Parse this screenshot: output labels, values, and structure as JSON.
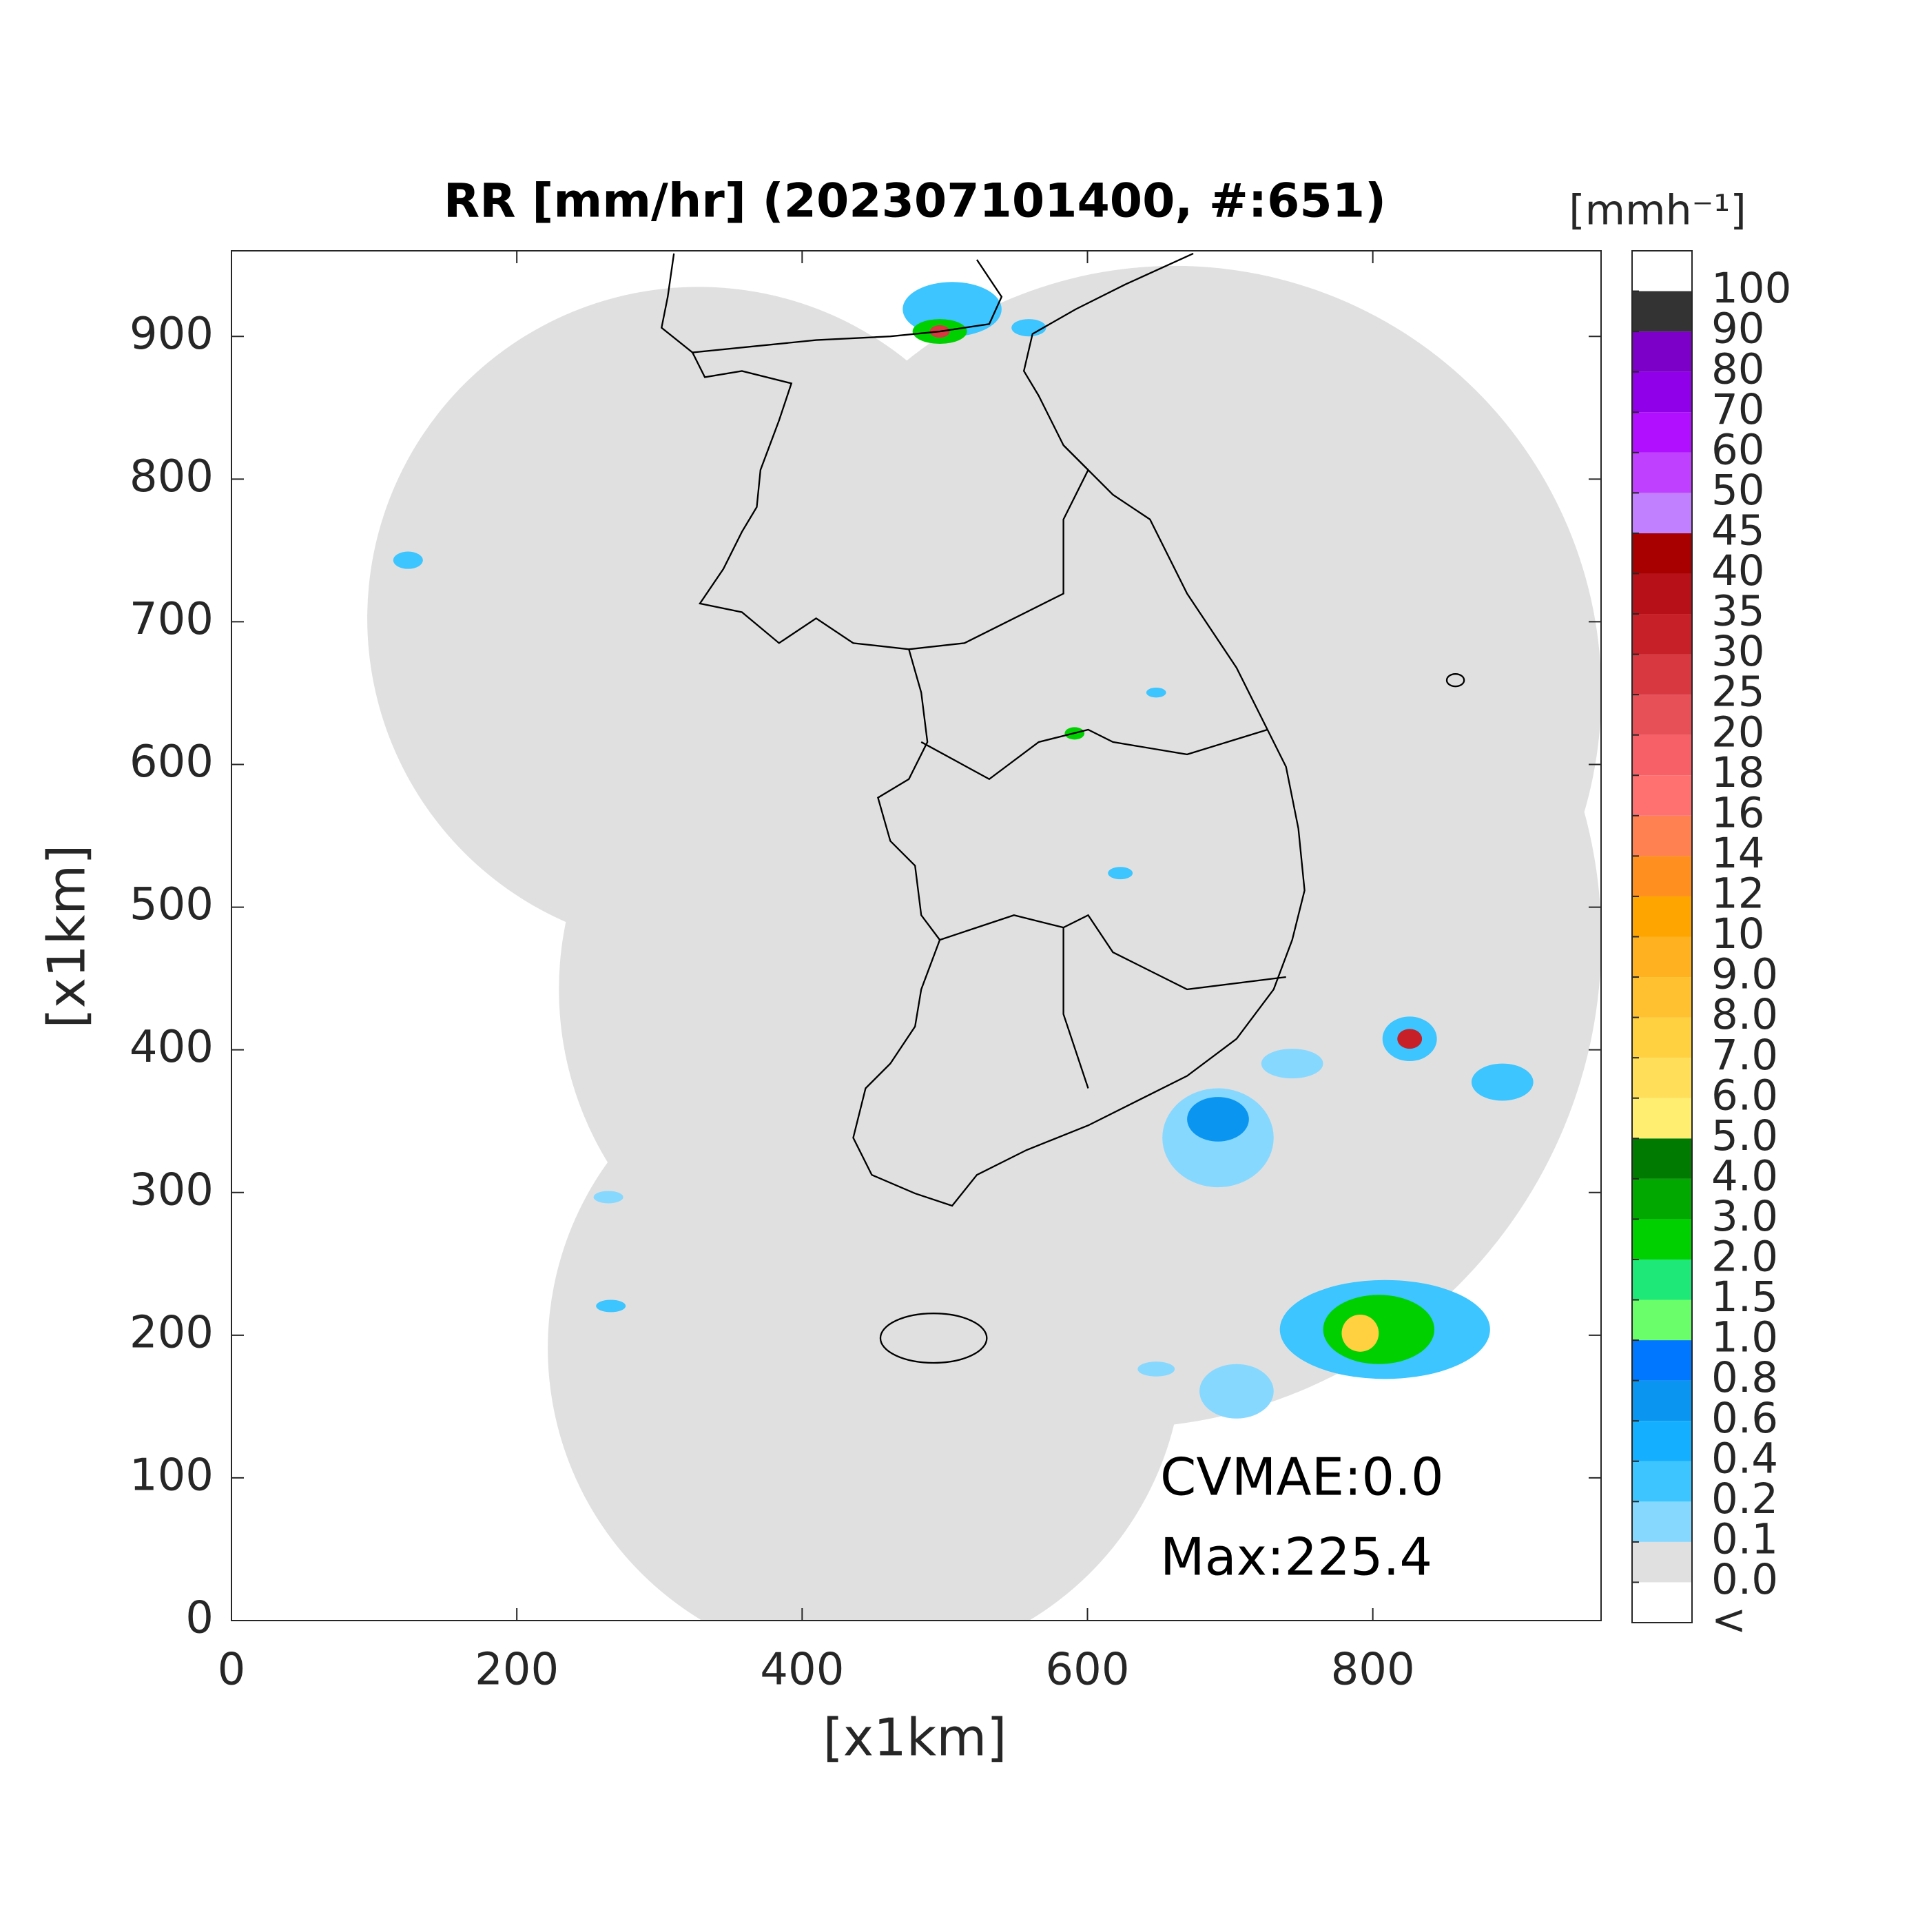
{
  "chart_data": {
    "type": "map",
    "title": "RR [mm/hr] (202307101400, #:651)",
    "x_label": "[x1km]",
    "y_label": "[x1km]",
    "xlim": [
      0,
      960
    ],
    "ylim": [
      0,
      960
    ],
    "xticks": [
      0,
      200,
      400,
      600,
      800
    ],
    "yticks": [
      0,
      100,
      200,
      300,
      400,
      500,
      600,
      700,
      800,
      900
    ],
    "annotations": [
      "CVMAE:0.0",
      "Max:225.4"
    ],
    "colorbar": {
      "unit_label": "[mmh⁻¹]",
      "below_label": "<",
      "levels": [
        {
          "value": 0,
          "label": "0.0"
        },
        0.1,
        0.2,
        0.4,
        0.6,
        0.8,
        {
          "value": 1,
          "label": "1.0"
        },
        1.5,
        {
          "value": 2,
          "label": "2.0"
        },
        {
          "value": 3,
          "label": "3.0"
        },
        {
          "value": 4,
          "label": "4.0"
        },
        {
          "value": 5,
          "label": "5.0"
        },
        {
          "value": 6,
          "label": "6.0"
        },
        {
          "value": 7,
          "label": "7.0"
        },
        {
          "value": 8,
          "label": "8.0"
        },
        {
          "value": 9,
          "label": "9.0"
        },
        10,
        12,
        14,
        16,
        18,
        20,
        25,
        30,
        35,
        40,
        45,
        50,
        60,
        70,
        80,
        90,
        100
      ],
      "colors": [
        "#ffffff",
        "#e0e0e0",
        "#87d8ff",
        "#3cc5ff",
        "#14b0ff",
        "#0a96f0",
        "#0077ff",
        "#6aff6a",
        "#1ee878",
        "#00d000",
        "#00a800",
        "#007a00",
        "#ffee70",
        "#ffdf5a",
        "#ffd040",
        "#ffc130",
        "#ffb120",
        "#ffa500",
        "#ff9020",
        "#ff8050",
        "#ff7070",
        "#f86068",
        "#e85058",
        "#d83840",
        "#c82028",
        "#b81018",
        "#a80000",
        "#c080ff",
        "#c040ff",
        "#b010ff",
        "#9000e8",
        "#7d00c8",
        "#333333"
      ]
    }
  }
}
